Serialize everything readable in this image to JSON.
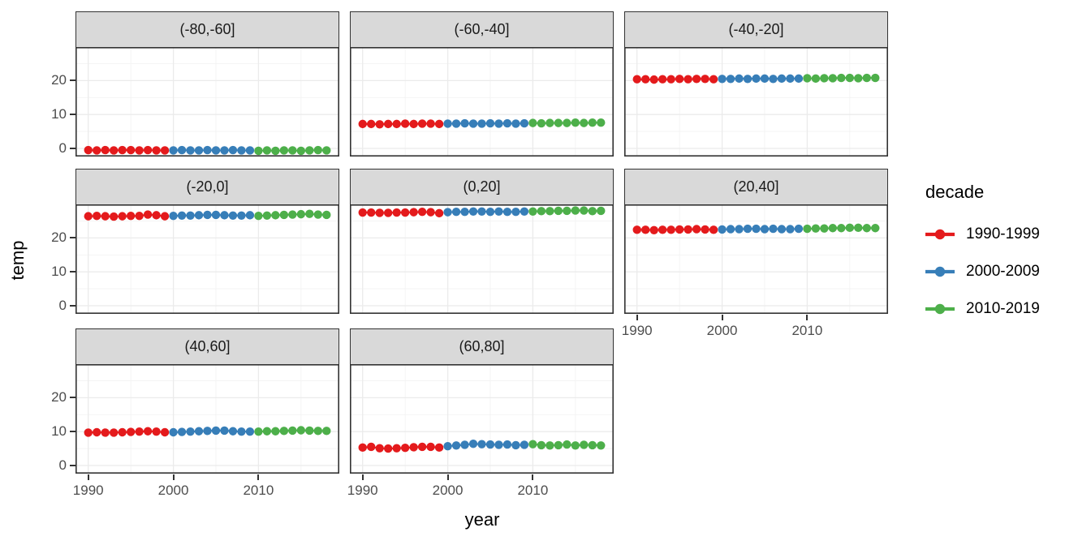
{
  "axes": {
    "x_title": "year",
    "y_title": "temp",
    "x_tick_labels": [
      "1990",
      "2000",
      "2010"
    ],
    "y_tick_labels": [
      "0",
      "10",
      "20"
    ]
  },
  "legend": {
    "title": "decade",
    "entries": [
      {
        "label": "1990-1999",
        "color": "#E41A1C"
      },
      {
        "label": "2000-2009",
        "color": "#377EB8"
      },
      {
        "label": "2010-2019",
        "color": "#4DAF4A"
      }
    ]
  },
  "colors": {
    "red_decade": "#E41A1C",
    "blue_decade": "#377EB8",
    "green_decade": "#4DAF4A",
    "strip_background": "#d9d9d9",
    "panel_border": "#333333",
    "grid_major": "#ebebeb",
    "grid_minor": "#f3f3f3",
    "tick_text": "#4d4d4d"
  },
  "chart_data": {
    "type": "scatter",
    "title": "",
    "xlabel": "year",
    "ylabel": "temp",
    "legend_title": "decade",
    "legend_position": "right",
    "grid": true,
    "x": [
      1990,
      1991,
      1992,
      1993,
      1994,
      1995,
      1996,
      1997,
      1998,
      1999,
      2000,
      2001,
      2002,
      2003,
      2004,
      2005,
      2006,
      2007,
      2008,
      2009,
      2010,
      2011,
      2012,
      2013,
      2014,
      2015,
      2016,
      2017,
      2018
    ],
    "xlim": [
      1988.5,
      2019.5
    ],
    "ylim": [
      -2.4,
      29.9
    ],
    "x_ticks": [
      1990,
      2000,
      2010
    ],
    "x_minor_ticks": [
      1995,
      2005,
      2015
    ],
    "y_ticks": [
      0,
      10,
      20
    ],
    "y_minor_ticks": [
      5,
      15,
      25
    ],
    "decades": [
      {
        "name": "1990-1999",
        "year_start": 1990,
        "year_end": 1999,
        "color": "#E41A1C"
      },
      {
        "name": "2000-2009",
        "year_start": 2000,
        "year_end": 2009,
        "color": "#377EB8"
      },
      {
        "name": "2010-2019",
        "year_start": 2010,
        "year_end": 2018,
        "color": "#4DAF4A"
      }
    ],
    "facets": [
      {
        "label": "(-80,-60]",
        "values": [
          -0.5,
          -0.6,
          -0.5,
          -0.6,
          -0.5,
          -0.5,
          -0.6,
          -0.5,
          -0.6,
          -0.6,
          -0.6,
          -0.5,
          -0.6,
          -0.6,
          -0.5,
          -0.6,
          -0.6,
          -0.5,
          -0.6,
          -0.6,
          -0.7,
          -0.6,
          -0.7,
          -0.6,
          -0.6,
          -0.7,
          -0.6,
          -0.5,
          -0.6
        ]
      },
      {
        "label": "(-60,-40]",
        "values": [
          7.2,
          7.2,
          7.1,
          7.2,
          7.2,
          7.3,
          7.2,
          7.3,
          7.3,
          7.2,
          7.3,
          7.3,
          7.4,
          7.3,
          7.3,
          7.4,
          7.3,
          7.4,
          7.3,
          7.4,
          7.5,
          7.4,
          7.5,
          7.5,
          7.5,
          7.6,
          7.5,
          7.6,
          7.6
        ]
      },
      {
        "label": "(-40,-20]",
        "values": [
          20.4,
          20.4,
          20.3,
          20.4,
          20.4,
          20.5,
          20.4,
          20.5,
          20.5,
          20.4,
          20.5,
          20.5,
          20.6,
          20.5,
          20.6,
          20.6,
          20.5,
          20.6,
          20.6,
          20.6,
          20.7,
          20.6,
          20.7,
          20.7,
          20.8,
          20.8,
          20.7,
          20.8,
          20.8
        ]
      },
      {
        "label": "(-20,0]",
        "values": [
          26.4,
          26.5,
          26.4,
          26.3,
          26.4,
          26.5,
          26.5,
          26.9,
          26.7,
          26.4,
          26.5,
          26.6,
          26.6,
          26.7,
          26.8,
          26.8,
          26.7,
          26.6,
          26.6,
          26.7,
          26.5,
          26.6,
          26.7,
          26.8,
          26.9,
          27.0,
          27.1,
          26.9,
          26.8
        ]
      },
      {
        "label": "(0,20]",
        "values": [
          27.5,
          27.5,
          27.4,
          27.4,
          27.5,
          27.5,
          27.6,
          27.7,
          27.6,
          27.3,
          27.6,
          27.7,
          27.7,
          27.8,
          27.8,
          27.7,
          27.8,
          27.7,
          27.7,
          27.8,
          27.8,
          27.9,
          27.9,
          28.0,
          28.0,
          28.1,
          28.1,
          27.9,
          28.0
        ]
      },
      {
        "label": "(20,40]",
        "values": [
          22.4,
          22.4,
          22.3,
          22.4,
          22.4,
          22.5,
          22.5,
          22.6,
          22.5,
          22.4,
          22.5,
          22.6,
          22.6,
          22.7,
          22.7,
          22.6,
          22.7,
          22.6,
          22.6,
          22.7,
          22.7,
          22.8,
          22.8,
          22.9,
          22.9,
          23.0,
          23.0,
          22.9,
          22.9
        ]
      },
      {
        "label": "(40,60]",
        "values": [
          9.7,
          9.8,
          9.7,
          9.7,
          9.8,
          9.9,
          10.0,
          10.1,
          10.0,
          9.8,
          9.8,
          9.9,
          10.0,
          10.1,
          10.2,
          10.3,
          10.3,
          10.1,
          10.0,
          10.0,
          10.0,
          10.1,
          10.1,
          10.2,
          10.3,
          10.4,
          10.3,
          10.2,
          10.2
        ]
      },
      {
        "label": "(60,80]",
        "values": [
          5.3,
          5.5,
          5.1,
          5.0,
          5.1,
          5.2,
          5.4,
          5.5,
          5.5,
          5.3,
          5.7,
          5.9,
          6.1,
          6.4,
          6.3,
          6.2,
          6.1,
          6.2,
          6.0,
          6.1,
          6.3,
          6.0,
          5.9,
          6.0,
          6.2,
          5.9,
          6.1,
          6.0,
          5.9
        ]
      }
    ]
  }
}
